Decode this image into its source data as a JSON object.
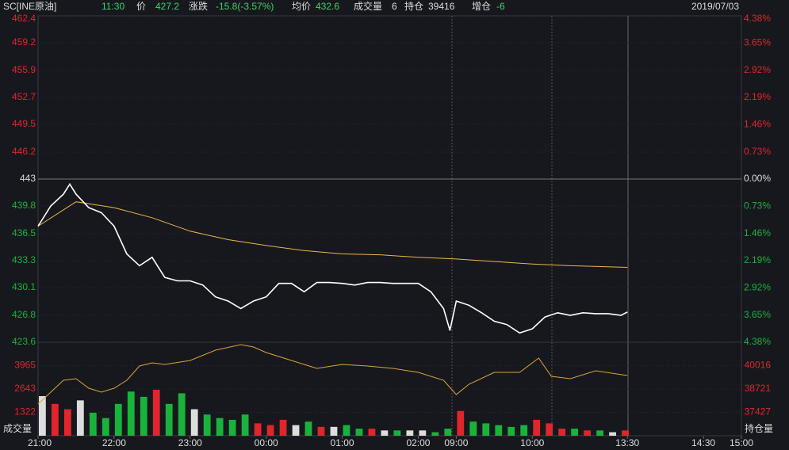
{
  "header": {
    "symbol": "SC[INE原油]",
    "time": "11:30",
    "price_label": "价",
    "price": 427.2,
    "change_label": "涨跌",
    "change": "-15.8(-3.57%)",
    "avg_label": "均价",
    "avg": 432.6,
    "volume_label": "成交量",
    "volume": 6,
    "oi_label": "持仓",
    "oi": 39416,
    "oi_change_label": "增仓",
    "oi_change": -6,
    "date": "2019/07/03"
  },
  "chart_data": {
    "type": "line",
    "xlim": [
      0,
      555
    ],
    "xticks": [
      {
        "value": 0,
        "label": "21:00"
      },
      {
        "value": 60,
        "label": "22:00"
      },
      {
        "value": 120,
        "label": "23:00"
      },
      {
        "value": 180,
        "label": "00:00"
      },
      {
        "value": 240,
        "label": "01:00"
      },
      {
        "value": 300,
        "label": "02:00"
      },
      {
        "value": 330,
        "label": "09:00"
      },
      {
        "value": 390,
        "label": "10:00"
      },
      {
        "value": 465,
        "label": "13:30"
      },
      {
        "value": 525,
        "label": "14:30"
      },
      {
        "value": 555,
        "label": "15:00"
      }
    ],
    "ylim": [
      423.6,
      462.4
    ],
    "yticks": [
      462.4,
      459.2,
      455.9,
      452.7,
      449.5,
      446.2,
      443.0,
      439.8,
      436.5,
      433.3,
      430.1,
      426.8,
      423.6
    ],
    "pct_lim": [
      -4.38,
      4.38
    ],
    "pct_ticks": [
      {
        "value": 4.38,
        "label": "4.38%"
      },
      {
        "value": 3.65,
        "label": "3.65%"
      },
      {
        "value": 2.92,
        "label": "2.92%"
      },
      {
        "value": 2.19,
        "label": "2.19%"
      },
      {
        "value": 1.46,
        "label": "1.46%"
      },
      {
        "value": 0.73,
        "label": "0.73%"
      },
      {
        "value": 0,
        "label": "0.00%"
      },
      {
        "value": -0.73,
        "label": "0.73%"
      },
      {
        "value": -1.46,
        "label": "1.46%"
      },
      {
        "value": -2.19,
        "label": "2.19%"
      },
      {
        "value": -2.92,
        "label": "2.92%"
      },
      {
        "value": -3.65,
        "label": "3.65%"
      },
      {
        "value": -4.38,
        "label": "4.38%"
      }
    ],
    "series": [
      {
        "color": "#ffffff",
        "x": [
          0,
          10,
          20,
          25,
          30,
          40,
          50,
          60,
          70,
          80,
          90,
          100,
          110,
          120,
          130,
          140,
          150,
          160,
          170,
          180,
          190,
          200,
          210,
          220,
          230,
          240,
          250,
          260,
          270,
          280,
          290,
          300,
          310,
          320,
          325,
          330,
          340,
          350,
          360,
          370,
          380,
          390,
          400,
          410,
          420,
          430,
          440,
          450,
          460,
          465
        ],
        "values": [
          437.4,
          439.8,
          441.2,
          442.4,
          441.2,
          439.6,
          439.0,
          437.4,
          434.1,
          432.7,
          433.7,
          431.3,
          430.9,
          430.9,
          430.4,
          429.0,
          428.5,
          427.6,
          428.5,
          429.0,
          430.6,
          430.6,
          429.6,
          430.7,
          430.7,
          430.6,
          430.4,
          430.7,
          430.7,
          430.6,
          430.6,
          430.6,
          429.6,
          427.6,
          425.0,
          428.5,
          428.0,
          427.1,
          426.1,
          425.7,
          424.7,
          425.2,
          426.6,
          427.1,
          426.8,
          427.1,
          427.0,
          427.0,
          426.8,
          427.2
        ]
      },
      {
        "color": "#e8b84a",
        "x": [
          0,
          30,
          60,
          90,
          120,
          150,
          180,
          210,
          240,
          270,
          300,
          330,
          360,
          390,
          420,
          465
        ],
        "values": [
          437.4,
          440.3,
          439.6,
          438.4,
          436.8,
          435.8,
          435.1,
          434.5,
          434.1,
          434.0,
          433.7,
          433.5,
          433.2,
          432.9,
          432.7,
          432.5
        ]
      }
    ],
    "volume": {
      "ylim": [
        0,
        5287
      ],
      "yticks": [
        1322,
        2643,
        3965
      ],
      "label": "成交量",
      "up_color": "#e0262b",
      "down_color": "#19b33c",
      "x": [
        0,
        10,
        20,
        30,
        40,
        50,
        60,
        70,
        80,
        90,
        100,
        110,
        120,
        130,
        140,
        150,
        160,
        170,
        180,
        190,
        200,
        210,
        220,
        230,
        240,
        250,
        260,
        270,
        280,
        290,
        300,
        310,
        320,
        330,
        340,
        350,
        360,
        370,
        380,
        390,
        400,
        410,
        420,
        430,
        440,
        450,
        460
      ],
      "values": [
        2240,
        1800,
        1500,
        2000,
        1300,
        1000,
        1800,
        2500,
        2200,
        2600,
        1800,
        2400,
        1500,
        1200,
        1000,
        900,
        1200,
        700,
        600,
        900,
        600,
        800,
        500,
        500,
        600,
        400,
        400,
        300,
        300,
        300,
        300,
        200,
        400,
        1400,
        800,
        700,
        600,
        500,
        600,
        900,
        700,
        400,
        400,
        300,
        300,
        200,
        300
      ]
    },
    "open_interest": {
      "y2lim": [
        36132,
        41311
      ],
      "y2ticks": [
        40016,
        38721,
        37427
      ],
      "label": "持仓量",
      "color": "#d9a43a",
      "x": [
        0,
        10,
        20,
        30,
        40,
        50,
        60,
        70,
        80,
        90,
        100,
        120,
        140,
        160,
        170,
        180,
        200,
        220,
        240,
        260,
        280,
        300,
        320,
        330,
        340,
        360,
        380,
        395,
        405,
        420,
        440,
        465
      ],
      "values": [
        37888,
        38546,
        39204,
        39292,
        38765,
        38546,
        38765,
        39204,
        39994,
        40170,
        40082,
        40302,
        40872,
        41179,
        41048,
        40740,
        40302,
        39863,
        40082,
        39994,
        39863,
        39643,
        39204,
        38414,
        38985,
        39643,
        39643,
        40433,
        39424,
        39292,
        39731,
        39467
      ]
    }
  }
}
